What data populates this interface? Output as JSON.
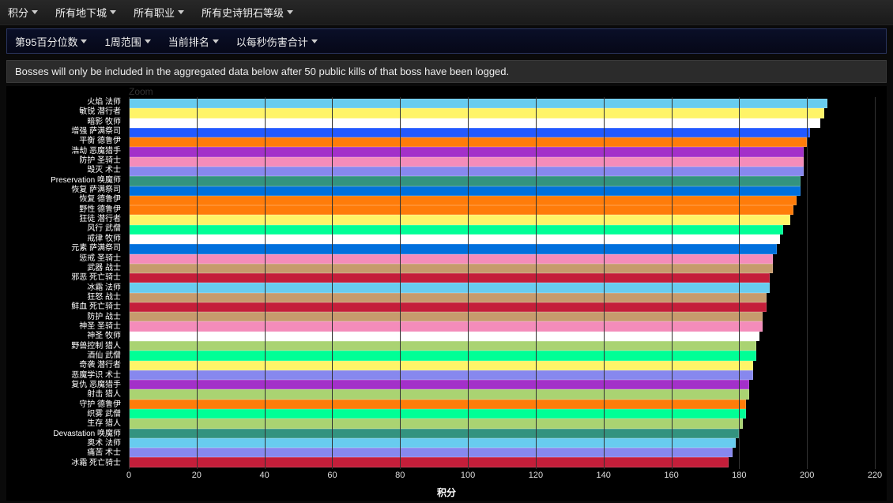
{
  "filters_row1": [
    {
      "label": "积分"
    },
    {
      "label": "所有地下城"
    },
    {
      "label": "所有职业"
    },
    {
      "label": "所有史诗钥石等级"
    }
  ],
  "filters_row2": [
    {
      "label": "第95百分位数"
    },
    {
      "label": "1周范围"
    },
    {
      "label": "当前排名"
    },
    {
      "label": "以每秒伤害合计"
    }
  ],
  "notice_text": "Bosses will only be included in the aggregated data below after 50 public kills of that boss have been logged.",
  "zoom_label": "Zoom",
  "chart": {
    "type": "bar-horizontal",
    "x_title": "积分",
    "xlim": [
      0,
      220
    ],
    "xtick_step": 20,
    "xticks": [
      0,
      20,
      40,
      60,
      80,
      100,
      120,
      140,
      160,
      180,
      200,
      220
    ],
    "background_color": "#000000",
    "grid_color": "#333333",
    "label_fontsize": 10,
    "tick_fontsize": 11,
    "bars": [
      {
        "label": "火焰 法师",
        "value": 206,
        "color": "#68ccef"
      },
      {
        "label": "敏锐 潜行者",
        "value": 205,
        "color": "#fff468"
      },
      {
        "label": "暗影 牧师",
        "value": 204,
        "color": "#ffffff"
      },
      {
        "label": "增强 萨满祭司",
        "value": 201,
        "color": "#2359ff"
      },
      {
        "label": "平衡 德鲁伊",
        "value": 200,
        "color": "#ff7c0a"
      },
      {
        "label": "浩劫 恶魔猎手",
        "value": 199,
        "color": "#a330c9"
      },
      {
        "label": "防护 圣骑士",
        "value": 199,
        "color": "#f48cba"
      },
      {
        "label": "毁灭 术士",
        "value": 199,
        "color": "#8788ee"
      },
      {
        "label": "Preservation 唤魔师",
        "value": 198,
        "color": "#33937f"
      },
      {
        "label": "恢复 萨满祭司",
        "value": 198,
        "color": "#0070dd"
      },
      {
        "label": "恢复 德鲁伊",
        "value": 197,
        "color": "#ff7c0a"
      },
      {
        "label": "野性 德鲁伊",
        "value": 196,
        "color": "#ff7c0a"
      },
      {
        "label": "狂徒 潜行者",
        "value": 195,
        "color": "#fff468"
      },
      {
        "label": "风行 武僧",
        "value": 193,
        "color": "#00ff96"
      },
      {
        "label": "戒律 牧师",
        "value": 192,
        "color": "#ffffff"
      },
      {
        "label": "元素 萨满祭司",
        "value": 191,
        "color": "#0070dd"
      },
      {
        "label": "惩戒 圣骑士",
        "value": 190,
        "color": "#f48cba"
      },
      {
        "label": "武器 战士",
        "value": 190,
        "color": "#c69b6d"
      },
      {
        "label": "邪恶 死亡骑士",
        "value": 189,
        "color": "#c41e3a"
      },
      {
        "label": "冰霜 法师",
        "value": 189,
        "color": "#68ccef"
      },
      {
        "label": "狂怒 战士",
        "value": 188,
        "color": "#c69b6d"
      },
      {
        "label": "鲜血 死亡骑士",
        "value": 188,
        "color": "#c41e3a"
      },
      {
        "label": "防护 战士",
        "value": 187,
        "color": "#c69b6d"
      },
      {
        "label": "神圣 圣骑士",
        "value": 187,
        "color": "#f48cba"
      },
      {
        "label": "神圣 牧师",
        "value": 186,
        "color": "#ffffff"
      },
      {
        "label": "野兽控制 猎人",
        "value": 185,
        "color": "#aad372"
      },
      {
        "label": "酒仙 武僧",
        "value": 185,
        "color": "#00ff96"
      },
      {
        "label": "奇袭 潜行者",
        "value": 184,
        "color": "#fff468"
      },
      {
        "label": "恶魔学识 术士",
        "value": 184,
        "color": "#8788ee"
      },
      {
        "label": "复仇 恶魔猎手",
        "value": 183,
        "color": "#a330c9"
      },
      {
        "label": "射击 猎人",
        "value": 183,
        "color": "#aad372"
      },
      {
        "label": "守护 德鲁伊",
        "value": 182,
        "color": "#ff7c0a"
      },
      {
        "label": "织雾 武僧",
        "value": 182,
        "color": "#00ff96"
      },
      {
        "label": "生存 猎人",
        "value": 181,
        "color": "#aad372"
      },
      {
        "label": "Devastation 唤魔师",
        "value": 180,
        "color": "#33937f"
      },
      {
        "label": "奥术 法师",
        "value": 179,
        "color": "#68ccef"
      },
      {
        "label": "痛苦 术士",
        "value": 178,
        "color": "#8788ee"
      },
      {
        "label": "冰霜 死亡骑士",
        "value": 177,
        "color": "#c41e3a"
      }
    ]
  }
}
